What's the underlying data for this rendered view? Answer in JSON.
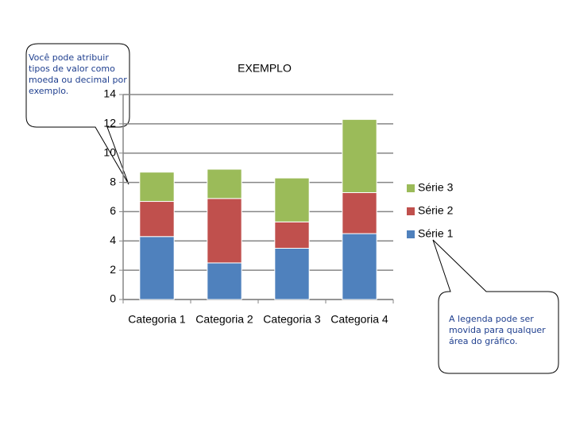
{
  "chart_data": {
    "type": "stacked_bar",
    "title": "EXEMPLO",
    "categories": [
      "Categoria 1",
      "Categoria 2",
      "Categoria 3",
      "Categoria 4"
    ],
    "series": [
      {
        "name": "Série 1",
        "color": "#4f81bd",
        "values": [
          4.3,
          2.5,
          3.5,
          4.5
        ]
      },
      {
        "name": "Série 2",
        "color": "#c0504d",
        "values": [
          2.4,
          4.4,
          1.8,
          2.8
        ]
      },
      {
        "name": "Série 3",
        "color": "#9bbb59",
        "values": [
          2.0,
          2.0,
          3.0,
          5.0
        ]
      }
    ],
    "ylim": [
      0,
      14
    ],
    "yticks": [
      0,
      2,
      4,
      6,
      8,
      10,
      12,
      14
    ],
    "grid": true,
    "legend": "right",
    "annotations": [
      "Você pode atribuir tipos de valor como moeda ou decimal por exemplo.",
      "A legenda pode ser movida para qualquer área do gráfico."
    ]
  }
}
